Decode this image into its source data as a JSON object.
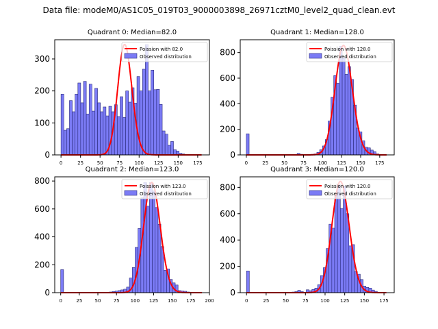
{
  "suptitle": "Data file: modeM0/AS1C05_019T03_9000003898_26971cztM0_level2_quad_clean.evt",
  "colors": {
    "bar_fill": "#7b7bf5",
    "bar_edge": "#2a2a7a",
    "curve": "#ff0000"
  },
  "chart_data": [
    {
      "type": "bar",
      "title": "Quadrant 0: Median=82.0",
      "median": 82.0,
      "legend": [
        "Poission with 82.0",
        "Observed distribution"
      ],
      "legend_position": "top-right",
      "xlim": [
        -8,
        190
      ],
      "ylim": [
        0,
        360
      ],
      "xticks": [
        0,
        25,
        50,
        75,
        100,
        125,
        150,
        175
      ],
      "yticks": [
        0,
        100,
        200,
        300
      ],
      "bin_width": 3.6,
      "values": [
        190,
        77,
        82,
        170,
        135,
        190,
        225,
        163,
        230,
        128,
        221,
        137,
        208,
        163,
        135,
        150,
        122,
        152,
        135,
        157,
        120,
        182,
        117,
        200,
        165,
        210,
        162,
        245,
        200,
        268,
        345,
        200,
        265,
        204,
        205,
        158,
        75,
        65,
        30,
        42,
        16,
        12,
        5,
        3,
        1,
        0,
        0,
        0,
        0
      ],
      "poisson_peak": 345
    },
    {
      "type": "bar",
      "title": "Quadrant 1: Median=128.0",
      "median": 128.0,
      "legend": [
        "Poission with 128.0",
        "Observed distribution"
      ],
      "legend_position": "top-right",
      "xlim": [
        -8,
        194
      ],
      "ylim": [
        0,
        900
      ],
      "xticks": [
        0,
        25,
        50,
        75,
        100,
        125,
        150,
        175
      ],
      "yticks": [
        0,
        200,
        400,
        600,
        800
      ],
      "bin_width": 3.7,
      "values": [
        165,
        0,
        0,
        0,
        0,
        0,
        0,
        0,
        0,
        0,
        0,
        0,
        0,
        0,
        0,
        0,
        0,
        0,
        12,
        5,
        3,
        2,
        2,
        5,
        8,
        20,
        40,
        70,
        120,
        265,
        450,
        620,
        560,
        850,
        760,
        630,
        690,
        590,
        390,
        210,
        180,
        110,
        60,
        55,
        38,
        25,
        8,
        3,
        1,
        0
      ],
      "poisson_peak": 855
    },
    {
      "type": "bar",
      "title": "Quadrant 2: Median=123.0",
      "median": 123.0,
      "legend": [
        "Poission with 123.0",
        "Observed distribution"
      ],
      "legend_position": "top-right",
      "xlim": [
        -8,
        200
      ],
      "ylim": [
        0,
        830
      ],
      "xticks": [
        0,
        25,
        50,
        75,
        100,
        125,
        150,
        175,
        200
      ],
      "yticks": [
        0,
        200,
        400,
        600,
        800
      ],
      "bin_width": 3.85,
      "values": [
        165,
        0,
        0,
        0,
        0,
        0,
        0,
        0,
        0,
        0,
        0,
        0,
        0,
        0,
        0,
        3,
        2,
        5,
        8,
        12,
        15,
        20,
        25,
        40,
        105,
        180,
        325,
        460,
        680,
        790,
        620,
        790,
        730,
        610,
        490,
        330,
        160,
        170,
        95,
        70,
        55,
        15,
        12,
        10,
        5,
        3,
        2,
        1,
        0,
        0
      ],
      "poisson_peak": 790
    },
    {
      "type": "bar",
      "title": "Quadrant 3: Median=120.0",
      "median": 120.0,
      "legend": [
        "Poission with 120.0",
        "Observed distribution"
      ],
      "legend_position": "top-right",
      "xlim": [
        -8,
        188
      ],
      "ylim": [
        0,
        880
      ],
      "xticks": [
        0,
        25,
        50,
        75,
        100,
        125,
        150,
        175
      ],
      "yticks": [
        0,
        200,
        400,
        600,
        800
      ],
      "bin_width": 3.62,
      "values": [
        165,
        0,
        0,
        0,
        0,
        0,
        0,
        0,
        0,
        0,
        0,
        0,
        0,
        0,
        0,
        0,
        5,
        8,
        18,
        8,
        3,
        22,
        15,
        25,
        35,
        60,
        130,
        190,
        335,
        520,
        490,
        740,
        820,
        640,
        810,
        600,
        355,
        365,
        160,
        140,
        100,
        50,
        40,
        35,
        20,
        10,
        3,
        2,
        1,
        0
      ],
      "poisson_peak": 845
    }
  ]
}
